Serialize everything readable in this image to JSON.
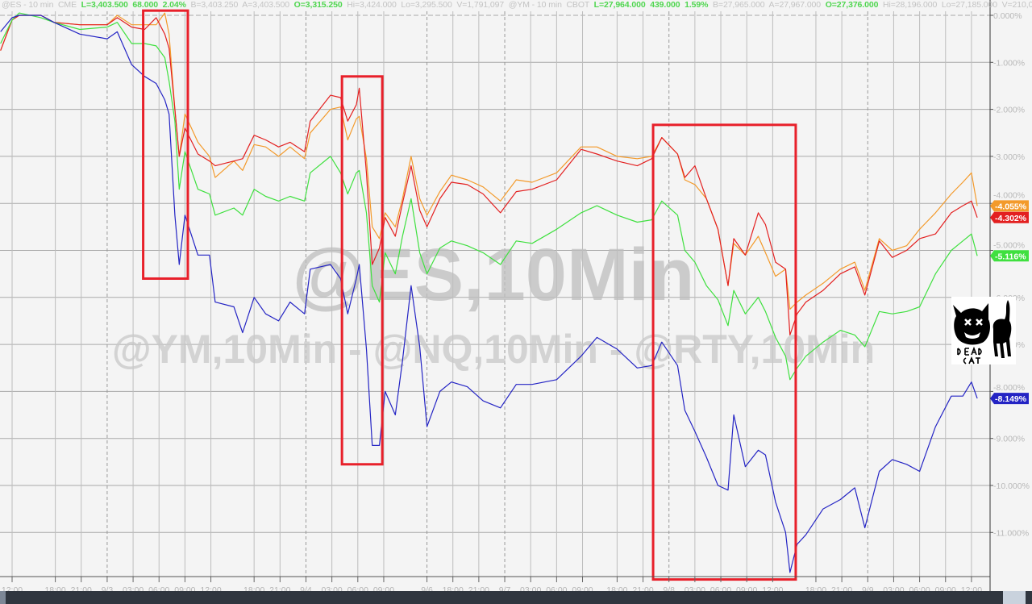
{
  "header": {
    "segments": [
      {
        "text": "@ES - 10 min  CME  ",
        "highlight": false
      },
      {
        "text": "L=3,403.500  68.000  2.04%",
        "highlight": true
      },
      {
        "text": "  B=3,403.250  A=3,403.500  ",
        "highlight": false
      },
      {
        "text": "O=3,315.250",
        "highlight": true
      },
      {
        "text": "  Hi=3,424.000  Lo=3,295.500  V=1,791,097  @YM - 10 min  CBOT  ",
        "highlight": false
      },
      {
        "text": "L=27,964.000  439.000  1.59%",
        "highlight": true
      },
      {
        "text": "  B=27,965.000  A=27,967.000  ",
        "highlight": false
      },
      {
        "text": "O=27,376.000",
        "highlight": true
      },
      {
        "text": "  Hi=28,196.000  Lo=27,185.000  V=210,0...",
        "highlight": false
      }
    ]
  },
  "watermark": {
    "line1": "@ES,10Min",
    "line2": "@YM,10Min - @NQ,10Min - @RTY,10Min"
  },
  "logo": {
    "text": "DEAD CAT",
    "icon": "dead-cat-icon"
  },
  "chart_data": {
    "type": "line",
    "title": "",
    "xlabel": "",
    "ylabel": "",
    "y_unit": "%",
    "ylim": [
      -12,
      0
    ],
    "grid": true,
    "y_ticks": [
      "0.000%",
      "-1.000%",
      "-2.000%",
      "-3.000%",
      "-4.000%",
      "-5.000%",
      "-6.000%",
      "-7.000%",
      "-8.000%",
      "-9.000%",
      "-10.000%",
      "-11.000%"
    ],
    "y_tick_values": [
      0,
      -1,
      -2,
      -3,
      -4,
      -5,
      -6,
      -7,
      -8,
      -9,
      -10,
      -11
    ],
    "x_ticks": [
      {
        "label": "12:00",
        "time": "9/2 12:00"
      },
      {
        "label": "18:00",
        "time": "9/2 18:00"
      },
      {
        "label": "21:00",
        "time": "9/2 21:00"
      },
      {
        "label": "9/3",
        "time": "9/3 00:00"
      },
      {
        "label": "03:00",
        "time": "9/3 03:00"
      },
      {
        "label": "06:00",
        "time": "9/3 06:00"
      },
      {
        "label": "09:00",
        "time": "9/3 09:00"
      },
      {
        "label": "12:00",
        "time": "9/3 12:00"
      },
      {
        "label": "18:00",
        "time": "9/3 18:00"
      },
      {
        "label": "21:00",
        "time": "9/3 21:00"
      },
      {
        "label": "9/4",
        "time": "9/4 00:00"
      },
      {
        "label": "03:00",
        "time": "9/4 03:00"
      },
      {
        "label": "06:00",
        "time": "9/4 06:00"
      },
      {
        "label": "09:00",
        "time": "9/4 09:00"
      },
      {
        "label": "9/6",
        "time": "9/6 15:00"
      },
      {
        "label": "18:00",
        "time": "9/6 18:00"
      },
      {
        "label": "21:00",
        "time": "9/6 21:00"
      },
      {
        "label": "9/7",
        "time": "9/7 00:00"
      },
      {
        "label": "03:00",
        "time": "9/7 03:00"
      },
      {
        "label": "06:00",
        "time": "9/7 06:00"
      },
      {
        "label": "09:00",
        "time": "9/7 09:00"
      },
      {
        "label": "18:00",
        "time": "9/7 18:00"
      },
      {
        "label": "21:00",
        "time": "9/7 21:00"
      },
      {
        "label": "9/8",
        "time": "9/8 00:00"
      },
      {
        "label": "03:00",
        "time": "9/8 03:00"
      },
      {
        "label": "06:00",
        "time": "9/8 06:00"
      },
      {
        "label": "09:00",
        "time": "9/8 09:00"
      },
      {
        "label": "12:00",
        "time": "9/8 12:00"
      },
      {
        "label": "18:00",
        "time": "9/8 18:00"
      },
      {
        "label": "21:00",
        "time": "9/8 21:00"
      },
      {
        "label": "9/9",
        "time": "9/9 00:00"
      },
      {
        "label": "03:00",
        "time": "9/9 03:00"
      },
      {
        "label": "06:00",
        "time": "9/9 06:00"
      },
      {
        "label": "09:00",
        "time": "9/9 09:00"
      },
      {
        "label": "12:00",
        "time": "9/9 12:00"
      }
    ],
    "x": [
      "9/2 10:40",
      "9/2 12:00",
      "9/2 12:50",
      "9/2 16:20",
      "9/2 17:50",
      "9/2 20:50",
      "9/3 00:00",
      "9/3 01:10",
      "9/3 02:50",
      "9/3 04:20",
      "9/3 05:40",
      "9/3 06:40",
      "9/3 07:10",
      "9/3 07:50",
      "9/3 08:20",
      "9/3 09:00",
      "9/3 10:30",
      "9/3 11:50",
      "9/3 12:30",
      "9/3 15:40",
      "9/3 16:40",
      "9/3 18:00",
      "9/3 19:20",
      "9/3 20:50",
      "9/3 22:10",
      "9/3 23:50",
      "9/4 00:30",
      "9/4 02:50",
      "9/4 04:00",
      "9/4 04:50",
      "9/4 05:50",
      "9/4 06:10",
      "9/4 07:00",
      "9/4 07:40",
      "9/4 08:30",
      "9/4 09:10",
      "9/4 10:20",
      "9/4 11:10",
      "9/4 12:10",
      "9/4 13:10",
      "9/6 15:00",
      "9/6 16:30",
      "9/6 17:50",
      "9/6 19:40",
      "9/6 21:30",
      "9/6 23:30",
      "9/7 01:20",
      "9/7 03:10",
      "9/7 06:00",
      "9/7 08:50",
      "9/7 15:40",
      "9/7 18:00",
      "9/7 20:20",
      "9/7 22:00",
      "9/7 23:10",
      "9/8 01:00",
      "9/8 01:50",
      "9/8 03:00",
      "9/8 04:20",
      "9/8 05:40",
      "9/8 06:50",
      "9/8 07:30",
      "9/8 08:50",
      "9/8 10:20",
      "9/8 11:10",
      "9/8 12:20",
      "9/8 13:30",
      "9/8 15:00",
      "9/8 15:50",
      "9/8 16:50",
      "9/8 18:50",
      "9/8 20:50",
      "9/8 22:30",
      "9/8 23:40",
      "9/9 01:20",
      "9/9 02:50",
      "9/9 04:30",
      "9/9 06:00",
      "9/9 07:50",
      "9/9 09:40",
      "9/9 11:00",
      "9/9 12:00",
      "9/9 12:40"
    ],
    "series": [
      {
        "color": "#f39a2b",
        "last_label": "-4.055%",
        "values": [
          -0.75,
          -0.1,
          0.0,
          0.0,
          -0.15,
          -0.2,
          -0.2,
          0.0,
          -0.2,
          -0.2,
          -0.2,
          0.05,
          -0.4,
          -2.0,
          -3.0,
          -2.1,
          -2.7,
          -3.0,
          -3.45,
          -3.1,
          -3.3,
          -2.75,
          -2.8,
          -3.0,
          -2.8,
          -3.05,
          -2.5,
          -2.0,
          -1.95,
          -2.65,
          -2.2,
          -2.15,
          -3.05,
          -4.5,
          -4.75,
          -4.2,
          -4.5,
          -3.9,
          -3.0,
          -3.9,
          -4.25,
          -3.75,
          -3.4,
          -3.5,
          -3.65,
          -3.95,
          -3.5,
          -3.55,
          -3.35,
          -2.8,
          -2.8,
          -3.0,
          -3.05,
          -3.0,
          -2.6,
          -2.95,
          -3.5,
          -3.6,
          -3.9,
          -4.55,
          -5.75,
          -4.85,
          -5.1,
          -4.7,
          -5.05,
          -5.55,
          -5.4,
          -6.25,
          -6.1,
          -5.95,
          -5.7,
          -5.4,
          -5.25,
          -5.85,
          -4.75,
          -5.0,
          -4.9,
          -4.55,
          -4.2,
          -3.8,
          -3.55,
          -3.35,
          -4.055
        ]
      },
      {
        "color": "#e32020",
        "last_label": "-4.302%",
        "values": [
          -0.75,
          -0.1,
          0.0,
          0.0,
          -0.15,
          -0.2,
          -0.2,
          -0.05,
          -0.25,
          -0.3,
          -0.05,
          -0.4,
          -0.7,
          -2.0,
          -3.0,
          -2.4,
          -2.95,
          -3.1,
          -3.2,
          -3.1,
          -3.05,
          -2.55,
          -2.65,
          -2.8,
          -2.7,
          -2.9,
          -2.25,
          -1.7,
          -1.75,
          -2.25,
          -1.9,
          -1.55,
          -3.35,
          -5.3,
          -4.95,
          -4.3,
          -4.7,
          -4.0,
          -3.2,
          -4.15,
          -4.5,
          -3.9,
          -3.55,
          -3.6,
          -3.8,
          -4.2,
          -3.75,
          -3.7,
          -3.5,
          -2.85,
          -2.95,
          -3.1,
          -3.2,
          -3.05,
          -2.6,
          -2.95,
          -3.45,
          -3.2,
          -3.9,
          -4.55,
          -5.75,
          -4.75,
          -5.1,
          -4.2,
          -4.45,
          -5.25,
          -5.4,
          -6.8,
          -6.35,
          -6.1,
          -5.85,
          -5.5,
          -5.35,
          -5.95,
          -4.8,
          -5.15,
          -5.0,
          -4.75,
          -4.65,
          -4.2,
          -4.05,
          -3.95,
          -4.302
        ]
      },
      {
        "color": "#3fe03f",
        "last_label": "-5.116%",
        "values": [
          -0.6,
          -0.1,
          0.05,
          -0.05,
          -0.15,
          -0.3,
          -0.25,
          -0.15,
          -0.6,
          -0.6,
          -0.65,
          -0.9,
          -1.4,
          -2.25,
          -3.7,
          -2.9,
          -3.7,
          -3.8,
          -4.25,
          -4.1,
          -4.25,
          -3.7,
          -3.85,
          -3.95,
          -3.85,
          -3.95,
          -3.35,
          -3.0,
          -3.35,
          -3.8,
          -3.35,
          -3.3,
          -4.2,
          -5.75,
          -6.1,
          -5.05,
          -5.5,
          -4.7,
          -3.9,
          -5.05,
          -5.5,
          -4.95,
          -4.8,
          -4.9,
          -5.05,
          -5.3,
          -4.8,
          -4.85,
          -4.55,
          -4.2,
          -4.05,
          -4.25,
          -4.4,
          -4.35,
          -3.95,
          -4.25,
          -5.0,
          -5.25,
          -5.75,
          -6.05,
          -6.6,
          -5.85,
          -6.35,
          -6.0,
          -6.3,
          -6.85,
          -7.25,
          -7.75,
          -7.5,
          -7.25,
          -6.95,
          -6.7,
          -6.8,
          -7.05,
          -6.3,
          -6.35,
          -6.3,
          -6.2,
          -5.5,
          -5.0,
          -4.8,
          -4.65,
          -5.116
        ]
      },
      {
        "color": "#2424c4",
        "last_label": "-8.149%",
        "values": [
          -0.35,
          -0.05,
          0.0,
          0.0,
          -0.15,
          -0.4,
          -0.5,
          -0.35,
          -1.05,
          -1.3,
          -1.45,
          -1.8,
          -2.1,
          -4.25,
          -5.3,
          -4.25,
          -5.1,
          -5.1,
          -6.1,
          -6.2,
          -6.75,
          -6.0,
          -6.35,
          -6.5,
          -6.1,
          -6.35,
          -5.4,
          -5.3,
          -5.6,
          -6.35,
          -5.6,
          -5.3,
          -7.1,
          -9.15,
          -9.15,
          -8.0,
          -8.5,
          -7.35,
          -5.75,
          -7.05,
          -8.75,
          -8.0,
          -7.8,
          -7.9,
          -8.2,
          -8.35,
          -7.85,
          -7.85,
          -7.75,
          -7.25,
          -6.85,
          -7.1,
          -7.5,
          -7.45,
          -6.95,
          -7.45,
          -8.4,
          -8.85,
          -9.4,
          -10.0,
          -10.1,
          -8.5,
          -9.6,
          -9.25,
          -9.35,
          -10.35,
          -11.0,
          -11.85,
          -11.25,
          -11.05,
          -10.5,
          -10.3,
          -10.05,
          -10.9,
          -9.7,
          -9.45,
          -9.55,
          -9.7,
          -8.75,
          -8.1,
          -8.1,
          -7.8,
          -8.149
        ]
      }
    ],
    "annotations": [
      {
        "type": "box",
        "color": "#e8202a",
        "x": [
          "9/3 04:10",
          "9/3 09:20"
        ],
        "y": [
          0.1,
          -5.6
        ]
      },
      {
        "type": "box",
        "color": "#e8202a",
        "x": [
          "9/4 04:10",
          "9/4 08:50"
        ],
        "y": [
          -1.3,
          -9.55
        ]
      },
      {
        "type": "box",
        "color": "#e8202a",
        "x": [
          "9/7 22:10",
          "9/8 15:40"
        ],
        "y": [
          -2.33,
          -12.0
        ]
      }
    ]
  }
}
